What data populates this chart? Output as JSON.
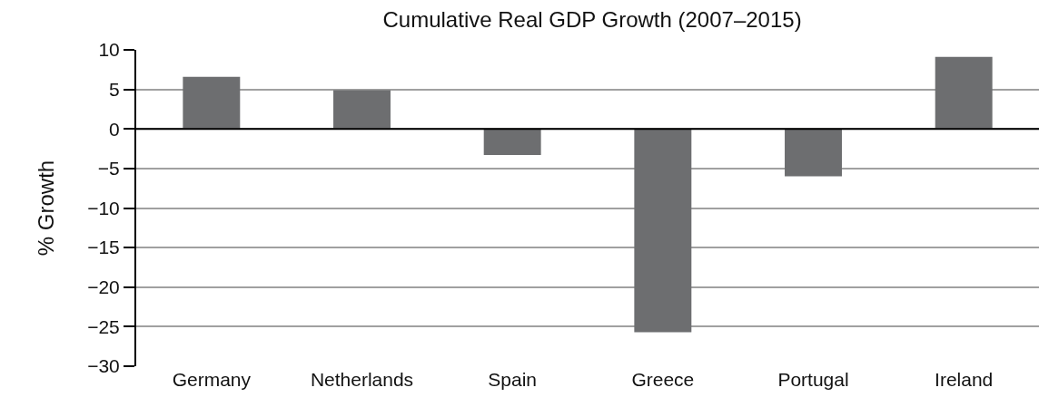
{
  "chart_data": {
    "type": "bar",
    "title": "Cumulative Real GDP Growth (2007–2015)",
    "ylabel": "% Growth",
    "categories": [
      "Germany",
      "Netherlands",
      "Spain",
      "Greece",
      "Portugal",
      "Ireland"
    ],
    "values": [
      6.6,
      4.9,
      -3.3,
      -25.7,
      -6.0,
      9.1
    ],
    "color": "#6d6e70",
    "ylim": [
      -30,
      10
    ],
    "yticks": [
      -30,
      -25,
      -20,
      -15,
      -10,
      -5,
      0,
      5,
      10
    ],
    "grid": "y",
    "ref_lines": [
      {
        "axis": "y",
        "value": 0,
        "color": "#000000"
      }
    ]
  }
}
